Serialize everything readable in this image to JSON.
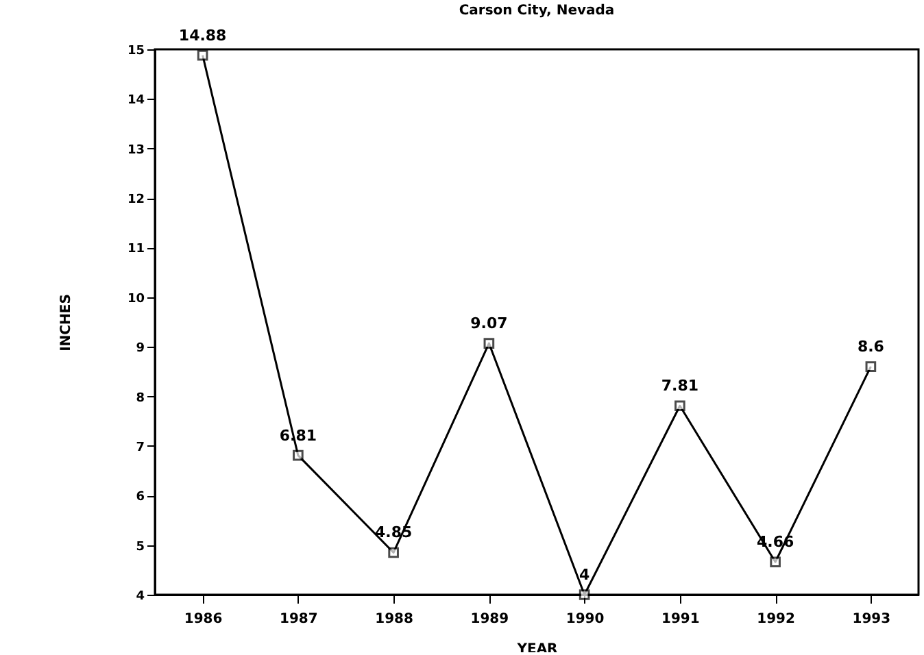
{
  "chart_data": {
    "type": "line",
    "title": "Carson City, Nevada",
    "xlabel": "YEAR",
    "ylabel": "INCHES",
    "categories": [
      "1986",
      "1987",
      "1988",
      "1989",
      "1990",
      "1991",
      "1992",
      "1993"
    ],
    "values": [
      14.88,
      6.81,
      4.85,
      9.07,
      4,
      7.81,
      4.66,
      8.6
    ],
    "color": "#000000",
    "ylim": [
      4,
      15
    ],
    "yticks": [
      4,
      5,
      6,
      7,
      8,
      9,
      10,
      11,
      12,
      13,
      14,
      15
    ],
    "data_labels": true,
    "marker": "square",
    "line_style": "solid",
    "grid": false
  }
}
